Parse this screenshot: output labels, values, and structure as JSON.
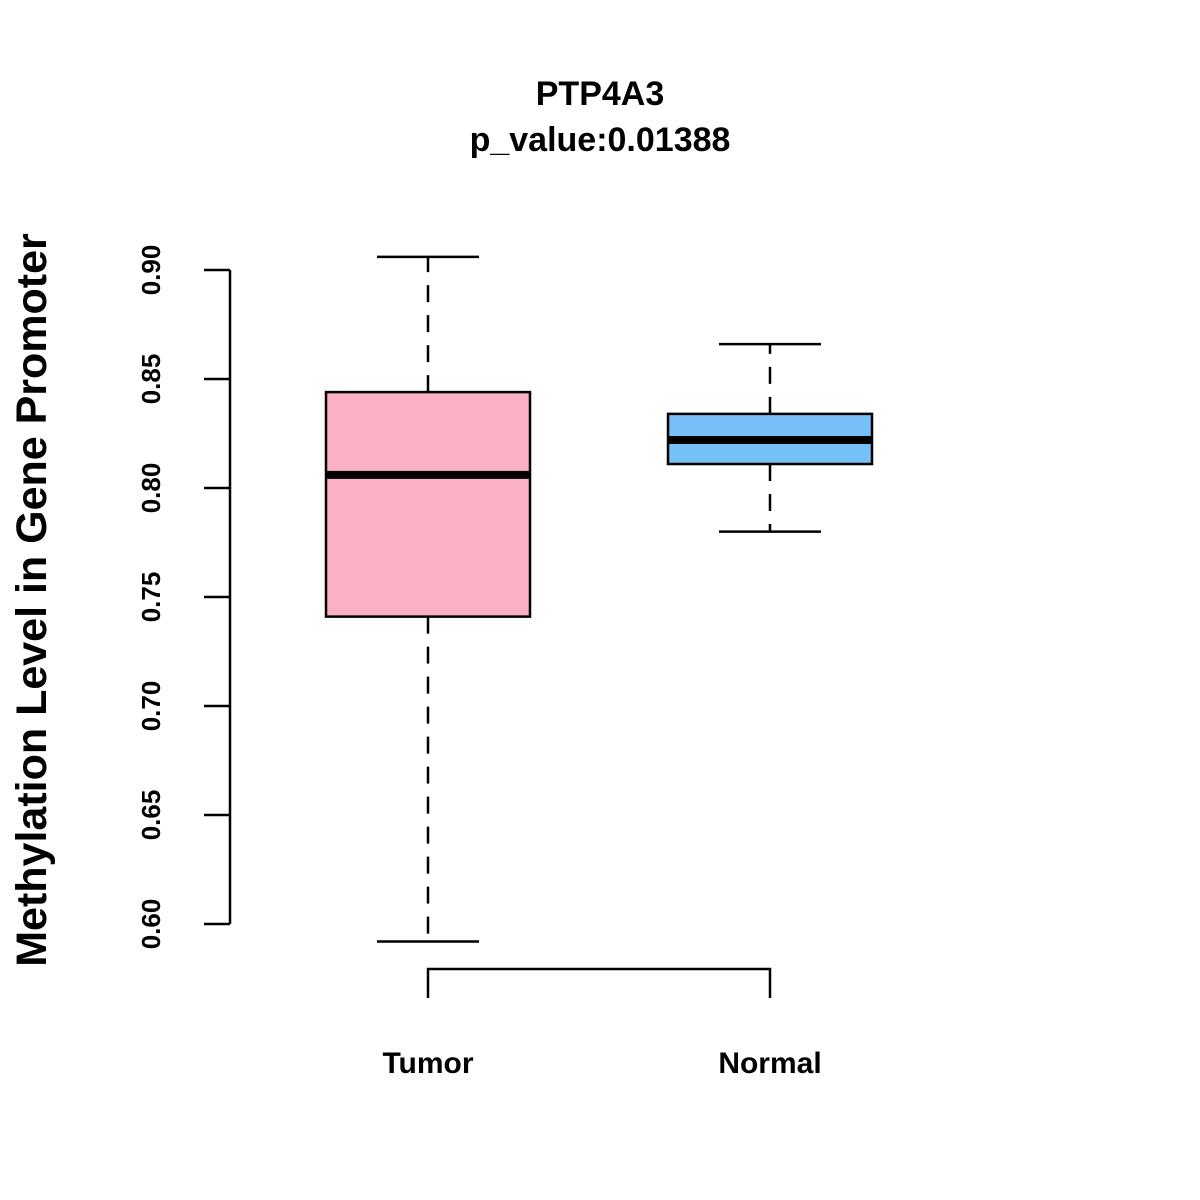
{
  "chart_data": {
    "type": "boxplot",
    "title": "PTP4A3",
    "subtitle": "p_value:0.01388",
    "ylabel": "Methylation Level in Gene Promoter",
    "xlabel": "",
    "ylim": [
      0.6,
      0.9
    ],
    "yticks": [
      0.6,
      0.65,
      0.7,
      0.75,
      0.8,
      0.85,
      0.9
    ],
    "ytick_labels": [
      "0.60",
      "0.65",
      "0.70",
      "0.75",
      "0.80",
      "0.85",
      "0.90"
    ],
    "categories": [
      "Tumor",
      "Normal"
    ],
    "boxes": [
      {
        "name": "Tumor",
        "min": 0.592,
        "q1": 0.741,
        "median": 0.806,
        "q3": 0.844,
        "max": 0.906,
        "color": "#FBB1C3"
      },
      {
        "name": "Normal",
        "min": 0.78,
        "q1": 0.811,
        "median": 0.822,
        "q3": 0.834,
        "max": 0.866,
        "color": "#76BFF7"
      }
    ],
    "significance_bracket": {
      "from": "Tumor",
      "to": "Normal"
    },
    "grid": false,
    "legend": "none"
  }
}
